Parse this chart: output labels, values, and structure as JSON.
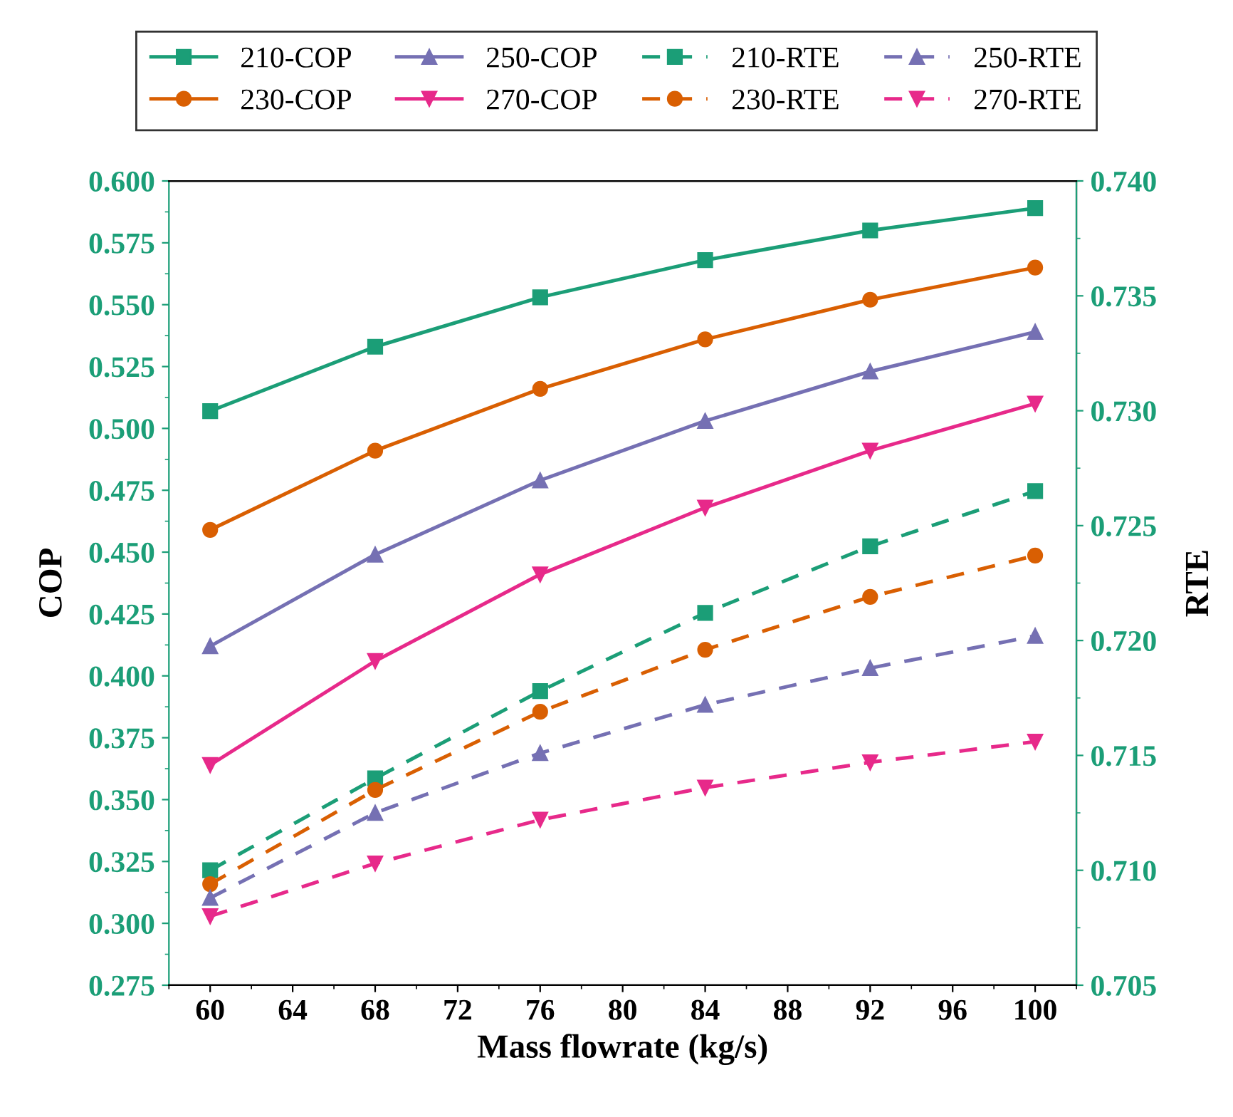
{
  "chart_data": {
    "type": "line",
    "xlabel": "Mass flowrate (kg/s)",
    "ylabel": "COP",
    "y2label": "RTE",
    "x": [
      60,
      68,
      76,
      84,
      92,
      100
    ],
    "xlim": [
      58,
      102
    ],
    "xticks": [
      60,
      64,
      68,
      72,
      76,
      80,
      84,
      88,
      92,
      96,
      100
    ],
    "ylim": [
      0.275,
      0.6
    ],
    "yticks": [
      {
        "value": 0.275,
        "label": "0.275"
      },
      {
        "value": 0.3,
        "label": "0.300"
      },
      {
        "value": 0.325,
        "label": "0.325"
      },
      {
        "value": 0.35,
        "label": "0.350"
      },
      {
        "value": 0.375,
        "label": "0.375"
      },
      {
        "value": 0.4,
        "label": "0.400"
      },
      {
        "value": 0.425,
        "label": "0.425"
      },
      {
        "value": 0.45,
        "label": "0.450"
      },
      {
        "value": 0.475,
        "label": "0.475"
      },
      {
        "value": 0.5,
        "label": "0.500"
      },
      {
        "value": 0.525,
        "label": "0.525"
      },
      {
        "value": 0.55,
        "label": "0.550"
      },
      {
        "value": 0.575,
        "label": "0.575"
      },
      {
        "value": 0.6,
        "label": "0.600"
      }
    ],
    "y2lim": [
      0.705,
      0.74
    ],
    "y2ticks": [
      {
        "value": 0.705,
        "label": "0.705"
      },
      {
        "value": 0.71,
        "label": "0.710"
      },
      {
        "value": 0.715,
        "label": "0.715"
      },
      {
        "value": 0.72,
        "label": "0.720"
      },
      {
        "value": 0.725,
        "label": "0.725"
      },
      {
        "value": 0.73,
        "label": "0.730"
      },
      {
        "value": 0.735,
        "label": "0.735"
      },
      {
        "value": 0.74,
        "label": "0.740"
      }
    ],
    "legend": "top",
    "grid": false,
    "series": [
      {
        "name": "210-COP",
        "color": "#1b9e77",
        "marker": "square",
        "line_style": "solid",
        "values": [
          0.507,
          0.533,
          0.553,
          0.568,
          0.58,
          0.589
        ]
      },
      {
        "name": "230-COP",
        "color": "#d95f02",
        "marker": "circle",
        "line_style": "solid",
        "values": [
          0.459,
          0.491,
          0.516,
          0.536,
          0.552,
          0.565
        ]
      },
      {
        "name": "250-COP",
        "color": "#7570b3",
        "marker": "triangle",
        "line_style": "solid",
        "values": [
          0.412,
          0.449,
          0.479,
          0.503,
          0.523,
          0.539
        ]
      },
      {
        "name": "270-COP",
        "color": "#e7298a",
        "marker": "triangle_down",
        "line_style": "solid",
        "values": [
          0.364,
          0.406,
          0.441,
          0.468,
          0.491,
          0.51
        ]
      },
      {
        "name": "210-RTE",
        "color": "#1b9e77",
        "marker": "square",
        "line_style": "dashed",
        "axis": "y2",
        "values": [
          0.71,
          0.714,
          0.7178,
          0.7212,
          0.7241,
          0.7265
        ]
      },
      {
        "name": "230-RTE",
        "color": "#d95f02",
        "marker": "circle",
        "line_style": "dashed",
        "axis": "y2",
        "values": [
          0.7094,
          0.7135,
          0.7169,
          0.7196,
          0.7219,
          0.7237
        ]
      },
      {
        "name": "250-RTE",
        "color": "#7570b3",
        "marker": "triangle",
        "line_style": "dashed",
        "axis": "y2",
        "values": [
          0.7088,
          0.7125,
          0.7151,
          0.7172,
          0.7188,
          0.7202
        ]
      },
      {
        "name": "270-RTE",
        "color": "#e7298a",
        "marker": "triangle_down",
        "line_style": "dashed",
        "axis": "y2",
        "values": [
          0.708,
          0.7103,
          0.7122,
          0.7136,
          0.7147,
          0.7156
        ]
      }
    ]
  }
}
